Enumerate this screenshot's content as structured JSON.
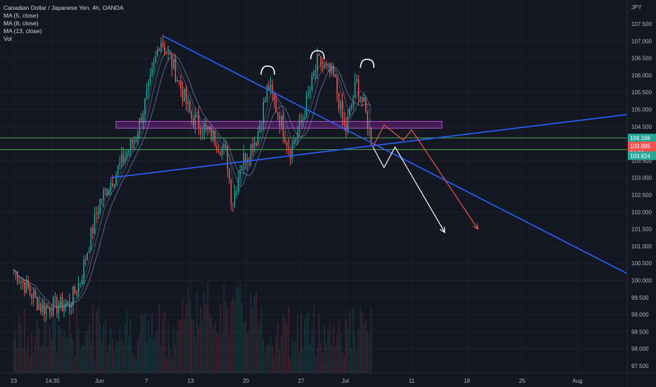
{
  "legend": {
    "title": "Canadian Dollar / Japanese Yen, 4h, OANDA",
    "ma5": "MA (5, close)",
    "ma8": "MA (8, close)",
    "ma13": "MA (13, close)",
    "vol": "Vol"
  },
  "currency": "JPY",
  "colors": {
    "background": "#131722",
    "up": "#26a69a",
    "down": "#ef5350",
    "trendline": "#2962ff",
    "level_line": "#4caf50",
    "zone": "#9c27b0",
    "price_tag_green": "#26a69a",
    "price_tag_red": "#ef5350",
    "projection_white": "#ffffff",
    "projection_red": "#ef5350"
  },
  "chart_data": {
    "type": "candlestick",
    "symbol": "CADJPY",
    "timeframe": "4h",
    "ylim": [
      97.5,
      108.2
    ],
    "y_ticks": [
      97.5,
      98.0,
      98.5,
      99.0,
      99.5,
      100.0,
      100.5,
      101.0,
      101.5,
      102.0,
      102.5,
      103.0,
      103.5,
      104.0,
      104.5,
      105.0,
      105.5,
      106.0,
      106.5,
      107.0,
      107.5
    ],
    "x_ticks": [
      {
        "label": "23",
        "x": 0.0
      },
      {
        "label": "14:30",
        "x": 14.0
      },
      {
        "label": "Jun",
        "x": 31.0
      },
      {
        "label": "7",
        "x": 48.0
      },
      {
        "label": "13",
        "x": 64.0
      },
      {
        "label": "20",
        "x": 84.0
      },
      {
        "label": "27",
        "x": 104.0
      },
      {
        "label": "Jul",
        "x": 120.0
      },
      {
        "label": "11",
        "x": 144.0
      },
      {
        "label": "18",
        "x": 164.0
      },
      {
        "label": "25",
        "x": 184.0
      },
      {
        "label": "Aug",
        "x": 204.0
      }
    ],
    "x_range": [
      -5.0,
      222.0
    ],
    "key_points": [
      {
        "x": 0.0,
        "price": 100.3
      },
      {
        "x": 10.0,
        "price": 99.2
      },
      {
        "x": 20.0,
        "price": 99.3
      },
      {
        "x": 24.0,
        "price": 100.0
      },
      {
        "x": 27.0,
        "price": 101.0
      },
      {
        "x": 31.0,
        "price": 102.3
      },
      {
        "x": 36.0,
        "price": 103.0
      },
      {
        "x": 44.0,
        "price": 104.2
      },
      {
        "x": 49.0,
        "price": 105.6
      },
      {
        "x": 53.0,
        "price": 107.1
      },
      {
        "x": 58.0,
        "price": 106.2
      },
      {
        "x": 64.0,
        "price": 104.8
      },
      {
        "x": 72.0,
        "price": 104.2
      },
      {
        "x": 77.0,
        "price": 103.7
      },
      {
        "x": 79.0,
        "price": 102.2
      },
      {
        "x": 82.0,
        "price": 103.4
      },
      {
        "x": 88.0,
        "price": 104.2
      },
      {
        "x": 92.0,
        "price": 105.7
      },
      {
        "x": 96.0,
        "price": 104.8
      },
      {
        "x": 100.0,
        "price": 103.8
      },
      {
        "x": 104.0,
        "price": 104.6
      },
      {
        "x": 110.0,
        "price": 106.4
      },
      {
        "x": 116.0,
        "price": 105.9
      },
      {
        "x": 120.0,
        "price": 104.3
      },
      {
        "x": 124.0,
        "price": 105.8
      },
      {
        "x": 127.0,
        "price": 105.0
      },
      {
        "x": 130.0,
        "price": 103.9
      }
    ],
    "last_price": 103.895,
    "countdown": "34:03",
    "levels": [
      {
        "price": 104.166,
        "label": "104.166",
        "tag": "green"
      },
      {
        "price": 103.824,
        "label": "103.824",
        "tag": "green"
      }
    ],
    "zone": {
      "price_low": 104.45,
      "price_high": 104.65,
      "x_start": 37.0,
      "x_end": 155.0
    },
    "trendlines": [
      {
        "x1": 54.0,
        "p1": 107.15,
        "x2": 222.0,
        "p2": 100.2
      },
      {
        "x1": 35.0,
        "p1": 103.0,
        "x2": 222.0,
        "p2": 104.85
      }
    ],
    "projections": [
      {
        "color": "white",
        "points": [
          [
            130.0,
            103.9
          ],
          [
            134.0,
            103.3
          ],
          [
            138.0,
            103.9
          ],
          [
            156.0,
            101.4
          ]
        ]
      },
      {
        "color": "red",
        "points": [
          [
            130.0,
            103.9
          ],
          [
            134.0,
            104.55
          ],
          [
            141.0,
            104.1
          ],
          [
            144.0,
            104.4
          ],
          [
            168.0,
            101.5
          ]
        ]
      }
    ],
    "head_marks": [
      {
        "x": 92.0,
        "price": 106.1
      },
      {
        "x": 110.0,
        "price": 106.55
      },
      {
        "x": 128.0,
        "price": 106.3
      }
    ]
  }
}
